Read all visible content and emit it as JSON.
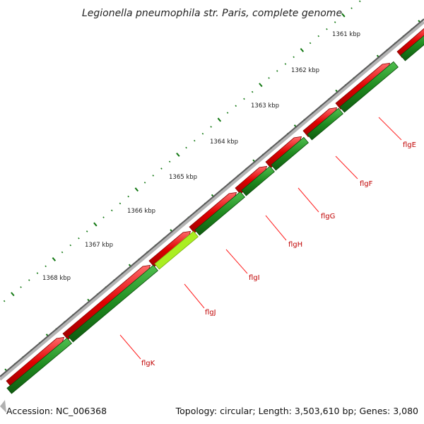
{
  "title": "Legionella pneumophila str. Paris, complete genome",
  "footer": {
    "accession": "Accession: NC_006368",
    "summary": "Topology: circular; Length: 3,503,610 bp; Genes: 3,080"
  },
  "tick_labels": [
    "1361 kbp",
    "1362 kbp",
    "1363 kbp",
    "1364 kbp",
    "1365 kbp",
    "1366 kbp",
    "1367 kbp",
    "1368 kbp"
  ],
  "genes": [
    {
      "label": "flgE"
    },
    {
      "label": "flgF"
    },
    {
      "label": "flgG"
    },
    {
      "label": "flgH"
    },
    {
      "label": "flgI"
    },
    {
      "label": "flgJ"
    },
    {
      "label": "flgK"
    }
  ],
  "colors": {
    "backbone": "#888888",
    "gene_red": "#e00000",
    "gene_green": "#1f8a1f",
    "gene_highlight": "#aaee22",
    "tick": "#117711",
    "label_line": "#ff2222",
    "label_text": "#c00000"
  },
  "icons": {
    "nav": "gray-triangle-icon"
  }
}
